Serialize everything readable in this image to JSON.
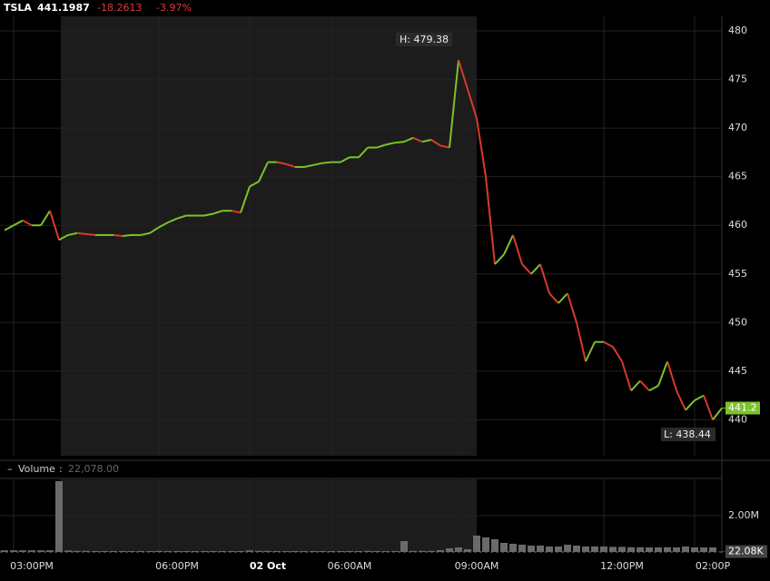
{
  "chart_data": {
    "type": "line",
    "symbol": "TSLA",
    "price": "441.1987",
    "change": "-18.2613",
    "change_pct": "-3.97%",
    "categories": [
      null,
      null,
      null,
      "03:00PM",
      null,
      null,
      null,
      null,
      null,
      null,
      null,
      null,
      null,
      null,
      null,
      null,
      null,
      null,
      null,
      "06:00PM",
      null,
      null,
      null,
      null,
      null,
      null,
      null,
      null,
      null,
      "02 Oct",
      null,
      null,
      null,
      null,
      null,
      null,
      null,
      null,
      "06:00AM",
      null,
      null,
      null,
      null,
      null,
      null,
      null,
      null,
      null,
      null,
      null,
      null,
      null,
      "09:00AM",
      null,
      null,
      null,
      null,
      null,
      null,
      null,
      null,
      null,
      null,
      null,
      null,
      null,
      null,
      null,
      "12:00PM",
      null,
      null,
      null,
      null,
      null,
      null,
      null,
      null,
      null,
      "02:00P",
      null
    ],
    "series": [
      {
        "name": "TSLA",
        "up_color": "#7cc22a",
        "down_color": "#d93a2a",
        "values": [
          459.5,
          460,
          460.5,
          460,
          460,
          461.5,
          458.5,
          459,
          459.2,
          459.1,
          459,
          459,
          459,
          458.9,
          459,
          459,
          459.2,
          459.8,
          460.3,
          460.7,
          461,
          461,
          461,
          461.2,
          461.5,
          461.5,
          461.3,
          464,
          464.5,
          466.5,
          466.5,
          466.3,
          466,
          466,
          466.2,
          466.4,
          466.5,
          466.5,
          467,
          467,
          468,
          468,
          468.3,
          468.5,
          468.6,
          469,
          468.6,
          468.8,
          468.2,
          468,
          477,
          474,
          471,
          465,
          456,
          457,
          459,
          456,
          455,
          456,
          453,
          452,
          453,
          450,
          446,
          448,
          448,
          447.5,
          446,
          443,
          444,
          443,
          443.5,
          446,
          443,
          441,
          442,
          442.5,
          440,
          441.2
        ]
      }
    ],
    "last_label": "441.2",
    "high_label": "H: 479.38",
    "low_label": "L: 438.44",
    "ylim": [
      436.3,
      481.5
    ],
    "yticks": [
      440,
      445,
      450,
      455,
      460,
      465,
      470,
      475,
      480
    ],
    "grid": true,
    "volume": {
      "name": "Volume",
      "legend_value": "22,078.00",
      "color": "#6a6a6a",
      "values": [
        90000,
        90000,
        90000,
        90000,
        90000,
        90000,
        3900000,
        80000,
        60000,
        60000,
        50000,
        50000,
        50000,
        50000,
        50000,
        50000,
        50000,
        60000,
        50000,
        50000,
        50000,
        50000,
        50000,
        50000,
        50000,
        50000,
        50000,
        90000,
        60000,
        60000,
        50000,
        50000,
        50000,
        50000,
        50000,
        50000,
        50000,
        50000,
        50000,
        50000,
        60000,
        50000,
        50000,
        50000,
        600000,
        60000,
        60000,
        60000,
        100000,
        200000,
        250000,
        150000,
        900000,
        800000,
        700000,
        500000,
        450000,
        400000,
        350000,
        350000,
        300000,
        300000,
        400000,
        350000,
        300000,
        300000,
        300000,
        280000,
        280000,
        260000,
        260000,
        250000,
        250000,
        260000,
        250000,
        300000,
        250000,
        250000,
        250000,
        22078
      ],
      "value_labels": [
        null,
        null,
        null,
        null,
        null,
        null,
        null,
        null,
        null,
        null,
        null,
        null,
        null,
        null,
        null,
        null,
        null,
        null,
        null,
        null,
        null,
        null,
        null,
        null,
        null,
        null,
        null,
        null,
        null,
        null,
        null,
        null,
        null,
        null,
        null,
        null,
        null,
        null,
        null,
        null,
        null,
        null,
        null,
        null,
        null,
        null,
        null,
        null,
        null,
        null,
        null,
        null,
        null,
        null,
        null,
        null,
        null,
        null,
        null,
        null,
        null,
        null,
        null,
        null,
        null,
        null,
        null,
        null,
        null,
        null,
        null,
        null,
        null,
        null,
        null,
        null,
        null,
        null,
        null,
        "22.08K"
      ],
      "ylim": [
        0,
        4000000
      ],
      "yticks": [
        {
          "value": 2000000,
          "label": "2.00M"
        }
      ]
    }
  }
}
